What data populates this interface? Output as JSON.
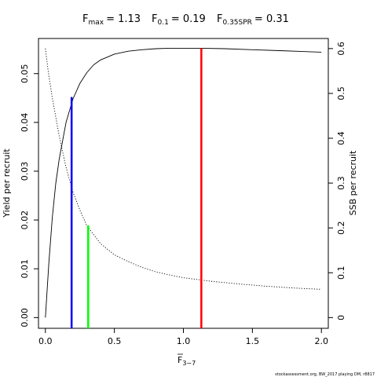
{
  "chart_data": {
    "type": "line",
    "title": {
      "fmax": {
        "sym": "F",
        "sub": "max",
        "val": "= 1.13"
      },
      "f01": {
        "sym": "F",
        "sub": "0.1",
        "val": "= 0.19"
      },
      "fspr": {
        "sym": "F",
        "sub": "0.35SPR",
        "val": "= 0.31"
      }
    },
    "xlabel": {
      "sym": "F",
      "sub": "3−7"
    },
    "ylabel_left": "Yield per recruit",
    "ylabel_right": "SSB per recruit",
    "footer": "stockassessment.org, BW_2017 playing DM, r8817",
    "x_range": [
      -0.05,
      2.05
    ],
    "y_left_range": [
      -0.0022,
      0.0572
    ],
    "y_right_range": [
      -0.0239,
      0.6225
    ],
    "x_ticks": [
      0,
      0.5,
      1,
      1.5,
      2
    ],
    "x_tick_labels": [
      "0.0",
      "0.5",
      "1.0",
      "1.5",
      "2.0"
    ],
    "y_left_ticks": [
      0,
      0.01,
      0.02,
      0.03,
      0.04,
      0.05
    ],
    "y_left_tick_labels": [
      "0.00",
      "0.01",
      "0.02",
      "0.03",
      "0.04",
      "0.05"
    ],
    "y_right_ticks": [
      0,
      0.1,
      0.2,
      0.3,
      0.4,
      0.5,
      0.6
    ],
    "y_right_tick_labels": [
      "0",
      "0.1",
      "0.2",
      "0.3",
      "0.4",
      "0.5",
      "0.6"
    ],
    "grid": false,
    "series": [
      {
        "axis": "left",
        "style": "solid",
        "color": "#000000",
        "x": [
          0,
          0.025,
          0.05,
          0.075,
          0.1,
          0.15,
          0.2,
          0.25,
          0.3,
          0.35,
          0.4,
          0.5,
          0.6,
          0.7,
          0.8,
          0.9,
          1.0,
          1.13,
          1.3,
          1.5,
          1.7,
          1.9,
          2.0
        ],
        "y": [
          0,
          0.0112,
          0.0205,
          0.0275,
          0.0325,
          0.04,
          0.0448,
          0.048,
          0.0502,
          0.0518,
          0.0528,
          0.054,
          0.0546,
          0.0549,
          0.0551,
          0.0552,
          0.0552,
          0.0552,
          0.0551,
          0.0549,
          0.0547,
          0.0545,
          0.0544
        ]
      },
      {
        "axis": "right",
        "style": "dotted",
        "color": "#000000",
        "x": [
          0,
          0.02,
          0.05,
          0.1,
          0.15,
          0.2,
          0.25,
          0.3,
          0.4,
          0.5,
          0.6,
          0.7,
          0.8,
          0.9,
          1.0,
          1.2,
          1.4,
          1.6,
          1.8,
          2.0
        ],
        "y": [
          0.6,
          0.55,
          0.49,
          0.405,
          0.335,
          0.28,
          0.24,
          0.205,
          0.165,
          0.14,
          0.125,
          0.112,
          0.102,
          0.095,
          0.089,
          0.081,
          0.075,
          0.07,
          0.066,
          0.063
        ]
      }
    ],
    "reference_lines": [
      {
        "name": "Fmax",
        "x": 1.13,
        "y_top": 0.0552,
        "color": "#ff0000"
      },
      {
        "name": "F0.1",
        "x": 0.19,
        "y_top": 0.0452,
        "color": "#0000ff"
      },
      {
        "name": "F0.35SPR",
        "x": 0.31,
        "y_top": 0.0189,
        "color": "#00ff00"
      }
    ]
  }
}
